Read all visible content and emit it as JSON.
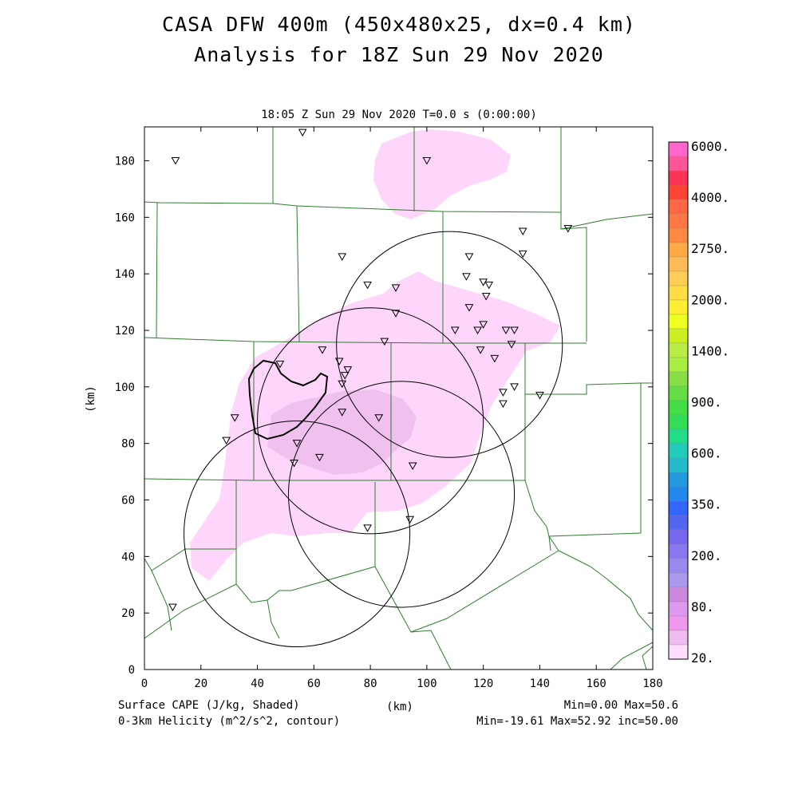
{
  "title": {
    "line1": "CASA DFW 400m (450x480x25, dx=0.4 km)",
    "line2": "Analysis for 18Z Sun 29 Nov 2020"
  },
  "subtitle": "18:05 Z Sun 29 Nov 2020   T=0.0 s (0:00:00)",
  "axes": {
    "xlabel": "(km)",
    "ylabel": "(km)",
    "xlim": [
      0,
      180
    ],
    "ylim": [
      0,
      192
    ],
    "xticks": [
      "0",
      "20",
      "40",
      "60",
      "80",
      "100",
      "120",
      "140",
      "160",
      "180"
    ],
    "yticks": [
      "0",
      "20",
      "40",
      "60",
      "80",
      "100",
      "120",
      "140",
      "160",
      "180"
    ]
  },
  "legend": {
    "labels": [
      "6000.",
      "4000.",
      "2750.",
      "2000.",
      "1400.",
      "900.",
      "600.",
      "350.",
      "200.",
      "80.",
      "20."
    ],
    "colors": [
      "#ff66cc",
      "#ff5599",
      "#ff3355",
      "#ff4433",
      "#ff6644",
      "#ff7744",
      "#ff8844",
      "#ffaa44",
      "#ffbb55",
      "#ffcc55",
      "#ffdd44",
      "#ffee33",
      "#eeff22",
      "#ccee22",
      "#bbee44",
      "#aaee44",
      "#88dd44",
      "#66dd44",
      "#44dd44",
      "#33dd55",
      "#22dd88",
      "#22ccbb",
      "#22bbcc",
      "#2299dd",
      "#2288ee",
      "#3366ff",
      "#5566ee",
      "#7766ee",
      "#8877ee",
      "#9988ee",
      "#aa99ee",
      "#cc88dd",
      "#dd99ee",
      "#ee99ee",
      "#eebbee",
      "#ffddff"
    ]
  },
  "footer": {
    "left1": "Surface CAPE (J/kg, Shaded)",
    "left2": "0-3km Helicity (m^2/s^2, contour)",
    "center": "(km)",
    "right1": "Min=0.00 Max=50.6",
    "right2": "Min=-19.61 Max=52.92 inc=50.00"
  },
  "map": {
    "field_colors": {
      "light": "#ffd6fb",
      "medium": "#f0c0ee",
      "boundary": "#2e7d2e"
    },
    "stations_km": [
      [
        11,
        180
      ],
      [
        56,
        190
      ],
      [
        100,
        180
      ],
      [
        150,
        156
      ],
      [
        134,
        155
      ],
      [
        134,
        147
      ],
      [
        115,
        146
      ],
      [
        70,
        146
      ],
      [
        79,
        136
      ],
      [
        89,
        135
      ],
      [
        114,
        139
      ],
      [
        120,
        137
      ],
      [
        122,
        136
      ],
      [
        121,
        132
      ],
      [
        115,
        128
      ],
      [
        89,
        126
      ],
      [
        110,
        120
      ],
      [
        118,
        120
      ],
      [
        120,
        122
      ],
      [
        128,
        120
      ],
      [
        131,
        120
      ],
      [
        130,
        115
      ],
      [
        85,
        116
      ],
      [
        63,
        113
      ],
      [
        119,
        113
      ],
      [
        124,
        110
      ],
      [
        48,
        108
      ],
      [
        69,
        109
      ],
      [
        72,
        106
      ],
      [
        71,
        104
      ],
      [
        70,
        101
      ],
      [
        131,
        100
      ],
      [
        127,
        98
      ],
      [
        140,
        97
      ],
      [
        127,
        94
      ],
      [
        70,
        91
      ],
      [
        32,
        89
      ],
      [
        83,
        89
      ],
      [
        29,
        81
      ],
      [
        54,
        80
      ],
      [
        62,
        75
      ],
      [
        53,
        73
      ],
      [
        95,
        72
      ],
      [
        94,
        53
      ],
      [
        79,
        50
      ],
      [
        10,
        22
      ]
    ],
    "radar_rings_km": [
      {
        "cx": 54,
        "cy": 48,
        "r": 40
      },
      {
        "cx": 80,
        "cy": 88,
        "r": 40
      },
      {
        "cx": 91,
        "cy": 62,
        "r": 40
      },
      {
        "cx": 108,
        "cy": 115,
        "r": 40
      }
    ]
  }
}
